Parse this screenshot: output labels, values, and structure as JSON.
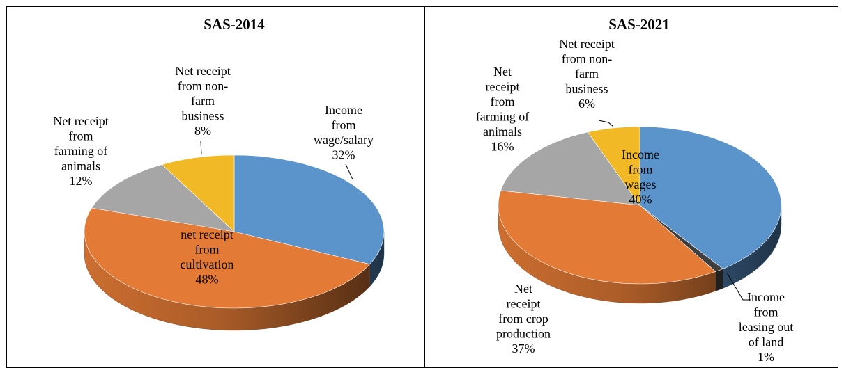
{
  "chart_data": [
    {
      "type": "pie",
      "title": "SAS-2014",
      "slices": [
        {
          "label": "Income from wage/salary",
          "value": 32,
          "display": "32%",
          "color": "#5B93CB",
          "lines": [
            "Income",
            "from",
            "wage/salary",
            "32%"
          ]
        },
        {
          "label": "net receipt from cultivation",
          "value": 48,
          "display": "48%",
          "color": "#E37A35",
          "lines": [
            "net receipt",
            "from",
            "cultivation",
            "48%"
          ]
        },
        {
          "label": "Net receipt from farming of animals",
          "value": 12,
          "display": "12%",
          "color": "#A6A6A6",
          "lines": [
            "Net receipt",
            "from",
            "farming of",
            "animals",
            "12%"
          ]
        },
        {
          "label": "Net receipt from non-farm business",
          "value": 8,
          "display": "8%",
          "color": "#F2B927",
          "lines": [
            "Net receipt",
            "from non-",
            "farm",
            "business",
            "8%"
          ]
        }
      ]
    },
    {
      "type": "pie",
      "title": "SAS-2021",
      "slices": [
        {
          "label": "Income from wages",
          "value": 40,
          "display": "40%",
          "color": "#5B93CB",
          "lines": [
            "Income",
            "from",
            "wages",
            "40%"
          ]
        },
        {
          "label": "Income from leasing out of land",
          "value": 1,
          "display": "1%",
          "color": "#3F3F3F",
          "lines": [
            "Income",
            "from",
            "leasing out",
            "of land",
            "1%"
          ]
        },
        {
          "label": "Net receipt from crop production",
          "value": 37,
          "display": "37%",
          "color": "#E37A35",
          "lines": [
            "Net",
            "receipt",
            "from crop",
            "production",
            "37%"
          ]
        },
        {
          "label": "Net receipt from farming of animals",
          "value": 16,
          "display": "16%",
          "color": "#A6A6A6",
          "lines": [
            "Net",
            "receipt",
            "from",
            "farming of",
            "animals",
            "16%"
          ]
        },
        {
          "label": "Net receipt from non-farm business",
          "value": 6,
          "display": "6%",
          "color": "#F2B927",
          "lines": [
            "Net receipt",
            "from non-",
            "farm",
            "business",
            "6%"
          ]
        }
      ]
    }
  ]
}
